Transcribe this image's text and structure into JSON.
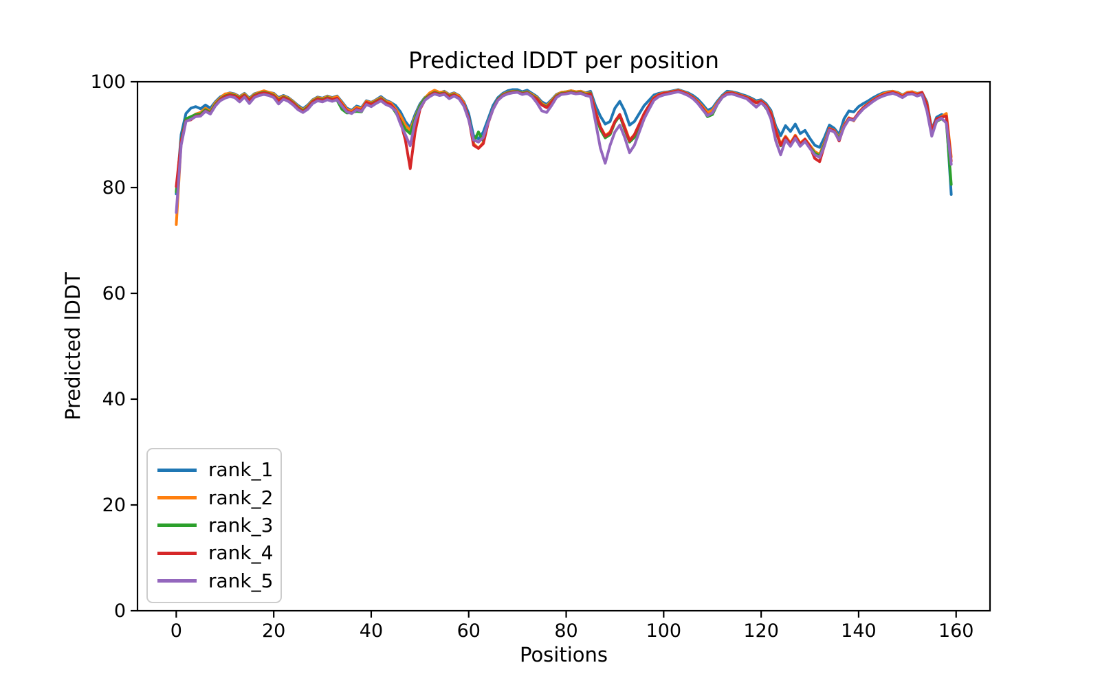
{
  "chart_data": {
    "type": "line",
    "title": "Predicted lDDT per position",
    "xlabel": "Positions",
    "ylabel": "Predicted lDDT",
    "xticks": [
      0,
      20,
      40,
      60,
      80,
      100,
      120,
      140,
      160
    ],
    "yticks": [
      0,
      20,
      40,
      60,
      80,
      100
    ],
    "xlim": [
      -7.95,
      166.95
    ],
    "ylim": [
      0,
      100
    ],
    "grid": false,
    "legend_position": "lower left",
    "x_start": 0,
    "x_step": 1,
    "n_positions": 160,
    "series": [
      {
        "name": "rank_1",
        "color": "#1f77b4",
        "values": [
          78.8,
          90.0,
          94.0,
          95.0,
          95.3,
          94.9,
          95.6,
          95.0,
          96.2,
          97.1,
          97.6,
          97.9,
          97.7,
          97.2,
          97.8,
          96.9,
          97.7,
          98.0,
          98.2,
          98.0,
          97.8,
          97.0,
          97.4,
          97.0,
          96.3,
          95.5,
          94.9,
          95.6,
          96.6,
          97.1,
          96.9,
          97.3,
          97.0,
          97.3,
          96.2,
          95.0,
          94.6,
          95.4,
          95.1,
          96.4,
          96.1,
          96.6,
          97.2,
          96.5,
          96.1,
          95.5,
          94.3,
          92.5,
          91.3,
          93.8,
          95.8,
          97.0,
          97.7,
          98.2,
          97.9,
          98.2,
          97.6,
          97.9,
          97.4,
          96.2,
          94.0,
          89.8,
          89.2,
          90.5,
          93.0,
          95.5,
          97.0,
          97.8,
          98.3,
          98.5,
          98.5,
          98.1,
          98.4,
          97.8,
          97.2,
          96.2,
          95.7,
          96.6,
          97.6,
          98.0,
          98.1,
          98.3,
          98.1,
          98.2,
          97.9,
          98.2,
          95.5,
          93.5,
          92.0,
          92.5,
          95.0,
          96.3,
          94.5,
          91.8,
          92.5,
          94.0,
          95.5,
          96.5,
          97.5,
          97.8,
          98.0,
          98.1,
          98.3,
          98.5,
          98.2,
          97.9,
          97.4,
          96.7,
          95.7,
          94.6,
          95.0,
          96.3,
          97.4,
          98.2,
          98.1,
          97.9,
          97.6,
          97.3,
          96.9,
          96.4,
          96.6,
          95.9,
          94.6,
          91.6,
          89.8,
          91.7,
          90.6,
          92.0,
          90.2,
          90.8,
          89.3,
          88.0,
          87.6,
          89.5,
          91.8,
          91.2,
          90.0,
          93.0,
          94.5,
          94.3,
          95.3,
          95.9,
          96.4,
          97.0,
          97.5,
          97.9,
          98.1,
          98.2,
          98.0,
          97.5,
          98.0,
          98.1,
          97.8,
          98.0,
          96.2,
          91.0,
          93.3,
          93.8,
          93.5,
          78.7
        ]
      },
      {
        "name": "rank_2",
        "color": "#ff7f0e",
        "values": [
          73.0,
          88.5,
          92.8,
          93.3,
          93.9,
          94.2,
          95.0,
          94.4,
          96.0,
          96.9,
          97.7,
          97.8,
          97.6,
          97.1,
          97.7,
          96.7,
          97.6,
          98.0,
          98.3,
          98.0,
          97.7,
          96.8,
          97.3,
          96.9,
          96.2,
          95.3,
          94.7,
          95.4,
          96.5,
          97.0,
          96.8,
          97.2,
          96.9,
          97.2,
          96.0,
          94.8,
          94.4,
          95.2,
          94.9,
          96.3,
          96.0,
          96.5,
          97.0,
          96.3,
          96.0,
          94.9,
          93.6,
          91.8,
          90.8,
          93.3,
          95.5,
          96.9,
          97.9,
          98.4,
          98.0,
          98.1,
          97.5,
          97.8,
          97.3,
          96.0,
          93.0,
          88.3,
          87.4,
          88.5,
          92.3,
          94.9,
          96.7,
          97.6,
          98.0,
          98.2,
          98.2,
          97.9,
          98.1,
          97.6,
          97.0,
          95.9,
          95.4,
          96.4,
          97.5,
          98.0,
          98.1,
          98.3,
          98.1,
          98.2,
          97.8,
          97.9,
          94.5,
          91.5,
          89.8,
          90.5,
          92.5,
          93.8,
          91.5,
          89.0,
          90.0,
          92.0,
          94.0,
          95.5,
          97.0,
          97.6,
          97.9,
          98.0,
          98.2,
          98.4,
          98.1,
          97.7,
          97.1,
          96.3,
          95.3,
          94.2,
          94.6,
          96.0,
          97.2,
          97.9,
          98.0,
          97.7,
          97.4,
          97.1,
          96.7,
          96.1,
          96.4,
          95.6,
          94.2,
          91.0,
          88.2,
          89.7,
          88.4,
          89.9,
          88.4,
          89.2,
          88.0,
          86.8,
          86.3,
          88.5,
          91.2,
          90.8,
          89.4,
          91.8,
          93.2,
          92.6,
          94.2,
          95.2,
          95.9,
          96.6,
          97.2,
          97.7,
          98.0,
          98.2,
          97.9,
          97.4,
          98.0,
          98.1,
          97.7,
          98.0,
          95.9,
          90.8,
          92.9,
          93.4,
          94.0,
          85.8
        ]
      },
      {
        "name": "rank_3",
        "color": "#2ca02c",
        "values": [
          79.2,
          89.0,
          93.0,
          93.4,
          93.8,
          93.9,
          94.7,
          94.2,
          95.7,
          96.7,
          97.3,
          97.6,
          97.4,
          96.9,
          97.5,
          96.5,
          97.4,
          97.8,
          98.0,
          97.8,
          97.4,
          96.5,
          97.1,
          96.7,
          96.0,
          95.1,
          94.5,
          95.2,
          96.3,
          96.8,
          96.6,
          97.0,
          96.7,
          96.5,
          94.8,
          94.1,
          94.2,
          94.4,
          94.3,
          96.0,
          95.8,
          96.3,
          96.8,
          96.1,
          95.6,
          94.2,
          92.7,
          91.0,
          90.2,
          93.0,
          95.4,
          96.8,
          97.5,
          98.0,
          97.7,
          97.9,
          97.3,
          97.6,
          96.9,
          95.5,
          93.3,
          88.6,
          90.5,
          88.8,
          92.4,
          94.9,
          96.7,
          97.5,
          97.9,
          98.1,
          98.2,
          97.8,
          98.0,
          97.4,
          96.8,
          95.7,
          95.2,
          96.2,
          97.3,
          97.8,
          97.9,
          98.1,
          97.9,
          98.0,
          97.6,
          97.8,
          94.0,
          91.0,
          89.4,
          90.0,
          92.3,
          93.6,
          91.0,
          88.6,
          89.5,
          91.5,
          93.8,
          95.3,
          96.8,
          97.4,
          97.7,
          97.9,
          98.1,
          98.3,
          98.0,
          97.6,
          96.9,
          96.0,
          94.9,
          93.4,
          93.8,
          95.7,
          97.0,
          97.8,
          97.9,
          97.6,
          97.3,
          97.0,
          96.6,
          96.0,
          96.3,
          95.0,
          93.9,
          90.7,
          87.9,
          89.4,
          88.1,
          89.6,
          88.1,
          89.0,
          87.7,
          86.5,
          86.0,
          88.2,
          91.0,
          90.6,
          89.2,
          91.5,
          93.0,
          92.8,
          94.0,
          95.0,
          95.7,
          96.4,
          97.0,
          97.4,
          97.7,
          97.9,
          97.6,
          97.1,
          97.7,
          97.8,
          97.4,
          97.7,
          95.5,
          90.2,
          92.5,
          93.0,
          92.3,
          80.6
        ]
      },
      {
        "name": "rank_4",
        "color": "#d62728",
        "values": [
          80.2,
          88.8,
          92.6,
          92.8,
          93.5,
          93.6,
          94.5,
          94.0,
          95.5,
          96.6,
          97.2,
          97.5,
          97.3,
          96.8,
          97.4,
          96.4,
          97.3,
          97.7,
          97.9,
          97.7,
          97.3,
          96.4,
          97.0,
          96.6,
          95.9,
          95.0,
          94.3,
          95.1,
          96.2,
          96.7,
          96.5,
          96.9,
          96.6,
          96.9,
          95.7,
          94.5,
          94.1,
          94.9,
          94.6,
          96.1,
          95.7,
          96.2,
          96.7,
          96.0,
          95.7,
          94.6,
          92.5,
          89.0,
          83.6,
          90.5,
          94.8,
          96.5,
          97.4,
          97.9,
          97.6,
          97.8,
          97.2,
          97.5,
          97.0,
          95.7,
          93.2,
          88.0,
          87.4,
          88.3,
          92.2,
          94.8,
          96.6,
          97.4,
          97.8,
          98.0,
          98.1,
          97.7,
          97.9,
          97.3,
          96.7,
          95.6,
          95.1,
          96.1,
          97.2,
          97.7,
          97.8,
          98.0,
          97.8,
          97.9,
          97.5,
          97.7,
          94.3,
          91.5,
          89.7,
          90.3,
          92.5,
          93.8,
          91.3,
          88.8,
          90.0,
          92.0,
          94.0,
          95.5,
          96.9,
          97.5,
          97.8,
          97.9,
          98.1,
          98.3,
          98.0,
          97.6,
          97.0,
          96.1,
          95.0,
          93.7,
          94.1,
          95.8,
          97.1,
          97.8,
          97.9,
          97.6,
          97.3,
          97.0,
          96.6,
          96.0,
          96.3,
          95.5,
          94.0,
          90.8,
          88.0,
          89.5,
          88.2,
          89.7,
          88.2,
          89.1,
          87.8,
          85.5,
          84.9,
          88.0,
          91.1,
          90.7,
          88.8,
          91.6,
          93.1,
          92.9,
          94.1,
          95.1,
          95.8,
          96.5,
          97.1,
          97.5,
          97.8,
          98.0,
          97.7,
          97.2,
          97.8,
          97.9,
          97.5,
          98.0,
          95.7,
          90.6,
          93.0,
          93.3,
          93.5,
          85.0
        ]
      },
      {
        "name": "rank_5",
        "color": "#9467bd",
        "values": [
          75.3,
          88.0,
          92.5,
          92.9,
          93.4,
          93.5,
          94.4,
          93.9,
          95.4,
          96.4,
          96.9,
          97.2,
          97.0,
          96.2,
          97.1,
          95.9,
          97.0,
          97.4,
          97.6,
          97.4,
          97.0,
          95.8,
          96.7,
          96.3,
          95.6,
          94.7,
          94.2,
          94.8,
          95.9,
          96.4,
          96.2,
          96.6,
          96.3,
          96.6,
          95.4,
          94.3,
          94.0,
          94.7,
          94.4,
          95.7,
          95.3,
          95.9,
          96.4,
          95.7,
          95.3,
          94.5,
          92.0,
          90.0,
          87.9,
          92.5,
          95.0,
          96.5,
          97.2,
          97.7,
          97.4,
          97.6,
          96.8,
          97.3,
          96.8,
          95.4,
          92.8,
          89.0,
          88.6,
          89.5,
          92.3,
          94.8,
          96.5,
          97.3,
          97.7,
          97.9,
          98.0,
          97.6,
          97.8,
          97.2,
          96.0,
          94.5,
          94.2,
          95.5,
          97.0,
          97.6,
          97.7,
          97.9,
          97.7,
          97.8,
          97.4,
          97.2,
          92.5,
          87.5,
          84.6,
          88.0,
          90.5,
          91.8,
          89.5,
          86.6,
          88.0,
          90.5,
          93.0,
          94.8,
          96.5,
          97.2,
          97.5,
          97.7,
          97.9,
          98.1,
          97.8,
          97.4,
          96.8,
          95.9,
          94.7,
          93.6,
          94.1,
          95.7,
          97.0,
          97.6,
          97.7,
          97.4,
          97.1,
          96.8,
          96.0,
          95.2,
          96.0,
          95.2,
          93.0,
          88.8,
          86.2,
          89.0,
          87.8,
          89.3,
          87.8,
          88.7,
          87.4,
          86.2,
          85.7,
          87.9,
          90.9,
          90.5,
          89.0,
          91.4,
          92.9,
          92.7,
          93.9,
          94.9,
          95.6,
          96.3,
          96.9,
          97.3,
          97.6,
          97.8,
          97.5,
          97.0,
          97.6,
          97.7,
          97.3,
          97.6,
          94.5,
          89.7,
          92.6,
          93.1,
          92.2,
          84.4
        ]
      }
    ]
  }
}
